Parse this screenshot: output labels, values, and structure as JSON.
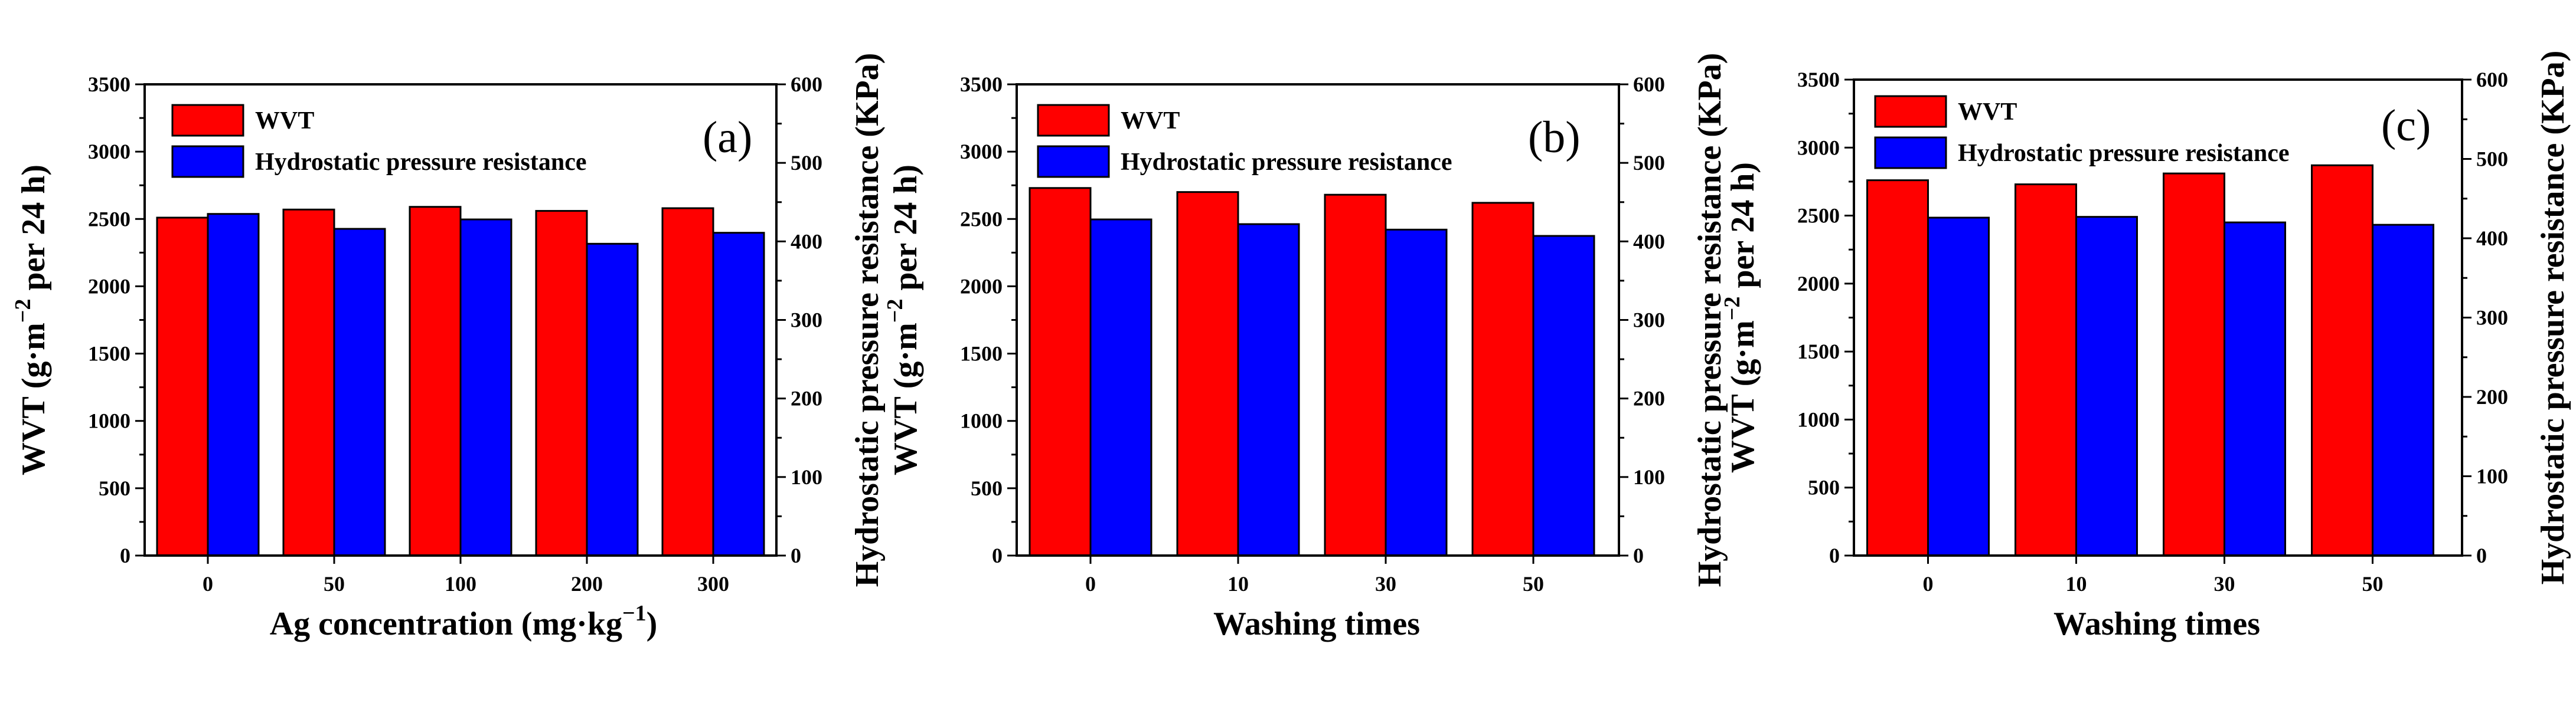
{
  "chart_data": [
    {
      "type": "bar",
      "panel_label": "(a)",
      "xlabel_main": "Ag concentration (mg·kg",
      "xlabel_sup": "−1",
      "xlabel_end": ")",
      "ylabel_left_main": "WVT (g·m",
      "ylabel_left_sup": "−2",
      "ylabel_left_end": " per 24 h)",
      "ylabel_right": "Hydrostatic pressure resistance (KPa)",
      "categories": [
        "0",
        "50",
        "100",
        "200",
        "300"
      ],
      "ylim_left": [
        0,
        3500
      ],
      "ylim_right": [
        0,
        600
      ],
      "yticks_left": [
        "0",
        "500",
        "1000",
        "1500",
        "2000",
        "2500",
        "3000",
        "3500"
      ],
      "yticks_right": [
        "0",
        "100",
        "200",
        "300",
        "400",
        "500",
        "600"
      ],
      "legend": [
        "WVT",
        "Hydrostatic pressure resistance"
      ],
      "series": [
        {
          "name": "WVT",
          "axis": "left",
          "color": "#ff0000",
          "values": [
            2510,
            2570,
            2590,
            2560,
            2580
          ]
        },
        {
          "name": "Hydrostatic pressure resistance",
          "axis": "right",
          "color": "#0000ff",
          "values": [
            435,
            416,
            428,
            397,
            411
          ]
        }
      ]
    },
    {
      "type": "bar",
      "panel_label": "(b)",
      "xlabel_main": "Washing times",
      "xlabel_sup": "",
      "xlabel_end": "",
      "ylabel_left_main": "WVT (g·m",
      "ylabel_left_sup": "−2",
      "ylabel_left_end": " per 24 h)",
      "ylabel_right": "Hydrostatic pressure resistance (KPa)",
      "categories": [
        "0",
        "10",
        "30",
        "50"
      ],
      "ylim_left": [
        0,
        3500
      ],
      "ylim_right": [
        0,
        600
      ],
      "yticks_left": [
        "0",
        "500",
        "1000",
        "1500",
        "2000",
        "2500",
        "3000",
        "3500"
      ],
      "yticks_right": [
        "0",
        "100",
        "200",
        "300",
        "400",
        "500",
        "600"
      ],
      "legend": [
        "WVT",
        "Hydrostatic pressure resistance"
      ],
      "series": [
        {
          "name": "WVT",
          "axis": "left",
          "color": "#ff0000",
          "values": [
            2730,
            2700,
            2680,
            2620
          ]
        },
        {
          "name": "Hydrostatic pressure resistance",
          "axis": "right",
          "color": "#0000ff",
          "values": [
            428,
            422,
            415,
            407
          ]
        }
      ]
    },
    {
      "type": "bar",
      "panel_label": "(c)",
      "xlabel_main": "Washing times",
      "xlabel_sup": "",
      "xlabel_end": "",
      "ylabel_left_main": "WVT (g·m",
      "ylabel_left_sup": "−2",
      "ylabel_left_end": " per 24 h)",
      "ylabel_right": "Hydrostatic pressure resistance (KPa)",
      "categories": [
        "0",
        "10",
        "30",
        "50"
      ],
      "ylim_left": [
        0,
        3500
      ],
      "ylim_right": [
        0,
        600
      ],
      "yticks_left": [
        "0",
        "500",
        "1000",
        "1500",
        "2000",
        "2500",
        "3000",
        "3500"
      ],
      "yticks_right": [
        "0",
        "100",
        "200",
        "300",
        "400",
        "500",
        "600"
      ],
      "legend": [
        "WVT",
        "Hydrostatic pressure resistance"
      ],
      "series": [
        {
          "name": "WVT",
          "axis": "left",
          "color": "#ff0000",
          "values": [
            2760,
            2730,
            2810,
            2870
          ]
        },
        {
          "name": "Hydrostatic pressure resistance",
          "axis": "right",
          "color": "#0000ff",
          "values": [
            426,
            427,
            420,
            417
          ]
        }
      ]
    }
  ]
}
